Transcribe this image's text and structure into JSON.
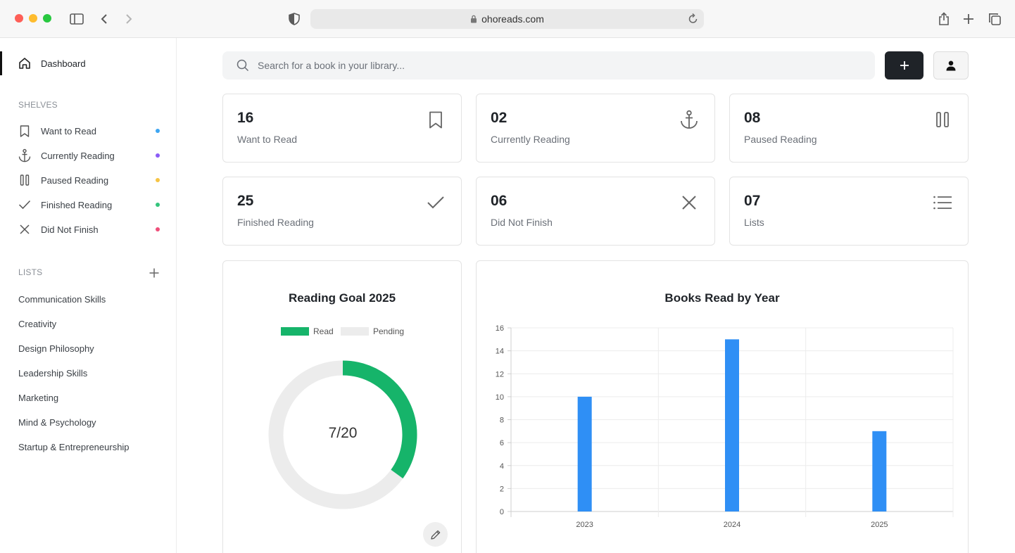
{
  "browser": {
    "url": "ohoreads.com"
  },
  "sidebar": {
    "dashboard": "Dashboard",
    "shelves_heading": "SHELVES",
    "shelves": [
      {
        "label": "Want to Read",
        "icon": "bookmark-icon",
        "dot": "#3ea6f2"
      },
      {
        "label": "Currently Reading",
        "icon": "anchor-icon",
        "dot": "#8b5cf6"
      },
      {
        "label": "Paused Reading",
        "icon": "pause-icon",
        "dot": "#f6c444"
      },
      {
        "label": "Finished Reading",
        "icon": "check-icon",
        "dot": "#34c47c"
      },
      {
        "label": "Did Not Finish",
        "icon": "x-icon",
        "dot": "#ef4f7a"
      }
    ],
    "lists_heading": "LISTS",
    "lists": [
      "Communication Skills",
      "Creativity",
      "Design Philosophy",
      "Leadership Skills",
      "Marketing",
      "Mind & Psychology",
      "Startup & Entrepreneurship"
    ]
  },
  "search": {
    "placeholder": "Search for a book in your library..."
  },
  "stats": [
    {
      "value": "16",
      "label": "Want to Read",
      "icon": "bookmark-icon"
    },
    {
      "value": "02",
      "label": "Currently Reading",
      "icon": "anchor-icon"
    },
    {
      "value": "08",
      "label": "Paused Reading",
      "icon": "pause-icon"
    },
    {
      "value": "25",
      "label": "Finished Reading",
      "icon": "check-icon"
    },
    {
      "value": "06",
      "label": "Did Not Finish",
      "icon": "x-icon"
    },
    {
      "value": "07",
      "label": "Lists",
      "icon": "list-icon"
    }
  ],
  "goal": {
    "title": "Reading Goal 2025",
    "legend_read": "Read",
    "legend_pending": "Pending",
    "read": 7,
    "total": 20,
    "center_text": "7/20",
    "colors": {
      "read": "#16b46a",
      "pending": "#ececec"
    }
  },
  "chart_data": {
    "type": "bar",
    "title": "Books Read by Year",
    "categories": [
      "2023",
      "2024",
      "2025"
    ],
    "values": [
      10,
      15,
      7
    ],
    "ylim": [
      0,
      16
    ],
    "yticks": [
      "0",
      "2",
      "4",
      "6",
      "8",
      "10",
      "12",
      "14",
      "16"
    ],
    "grid": true,
    "color": "#2f8ff5"
  }
}
